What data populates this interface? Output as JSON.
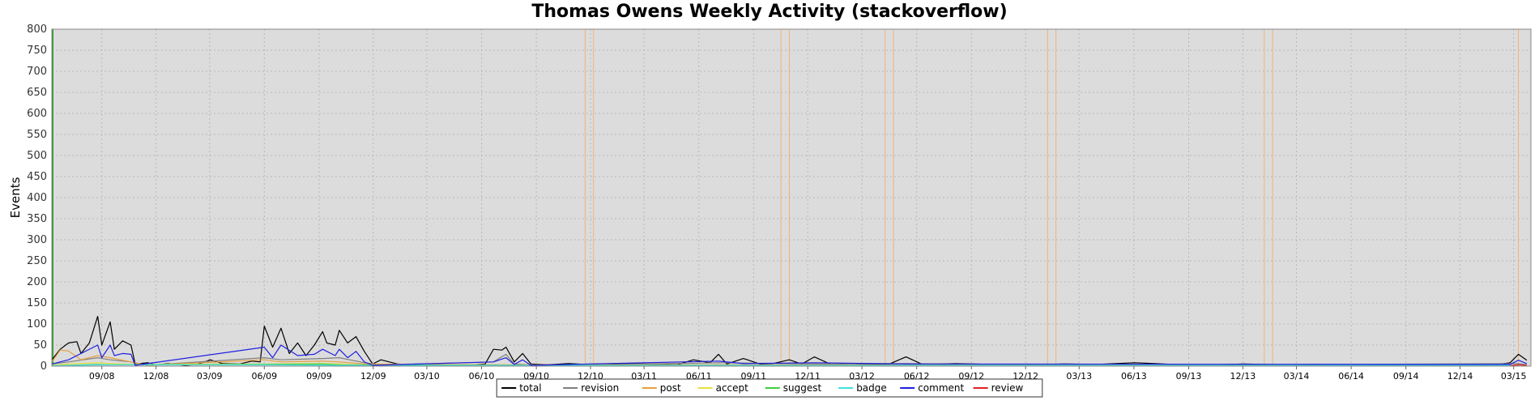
{
  "chart_data": {
    "type": "line",
    "title": "Thomas Owens Weekly Activity (stackoverflow)",
    "ylabel": "Events",
    "xlabel": "",
    "ylim": [
      0,
      800
    ],
    "yticks": [
      0,
      50,
      100,
      150,
      200,
      250,
      300,
      350,
      400,
      450,
      500,
      550,
      600,
      650,
      700,
      750,
      800
    ],
    "x_start": "2008-06-09",
    "x_end": "2015-03-30",
    "xtick_labels": [
      {
        "label": "09/08",
        "date": "2008-09-01"
      },
      {
        "label": "12/08",
        "date": "2008-12-01"
      },
      {
        "label": "03/09",
        "date": "2009-03-01"
      },
      {
        "label": "06/09",
        "date": "2009-06-01"
      },
      {
        "label": "09/09",
        "date": "2009-09-01"
      },
      {
        "label": "12/09",
        "date": "2009-12-01"
      },
      {
        "label": "03/10",
        "date": "2010-03-01"
      },
      {
        "label": "06/10",
        "date": "2010-06-01"
      },
      {
        "label": "09/10",
        "date": "2010-09-01"
      },
      {
        "label": "12/10",
        "date": "2010-12-01"
      },
      {
        "label": "03/11",
        "date": "2011-03-01"
      },
      {
        "label": "06/11",
        "date": "2011-06-01"
      },
      {
        "label": "09/11",
        "date": "2011-09-01"
      },
      {
        "label": "12/11",
        "date": "2011-12-01"
      },
      {
        "label": "03/12",
        "date": "2012-03-01"
      },
      {
        "label": "06/12",
        "date": "2012-06-01"
      },
      {
        "label": "09/12",
        "date": "2012-09-01"
      },
      {
        "label": "12/12",
        "date": "2012-12-01"
      },
      {
        "label": "03/13",
        "date": "2013-03-01"
      },
      {
        "label": "06/13",
        "date": "2013-06-01"
      },
      {
        "label": "09/13",
        "date": "2013-09-01"
      },
      {
        "label": "12/13",
        "date": "2013-12-01"
      },
      {
        "label": "03/14",
        "date": "2014-03-01"
      },
      {
        "label": "06/14",
        "date": "2014-06-01"
      },
      {
        "label": "09/14",
        "date": "2014-09-01"
      },
      {
        "label": "12/14",
        "date": "2014-12-01"
      },
      {
        "label": "03/15",
        "date": "2015-03-01"
      }
    ],
    "vertical_markers": {
      "color": "#f2b27a",
      "dates": [
        "2010-11-22",
        "2010-12-06",
        "2011-10-17",
        "2011-10-31",
        "2012-04-09",
        "2012-04-23",
        "2013-01-07",
        "2013-01-21",
        "2014-01-06",
        "2014-01-20",
        "2015-03-09"
      ]
    },
    "start_marker": {
      "date": "2008-06-09",
      "color": "#2aa02a"
    },
    "grid": true,
    "legend_position": "bottom-center",
    "series": [
      {
        "name": "total",
        "color": "#000000",
        "points": [
          [
            "2008-06-09",
            15
          ],
          [
            "2008-06-23",
            40
          ],
          [
            "2008-07-07",
            55
          ],
          [
            "2008-07-21",
            58
          ],
          [
            "2008-07-28",
            30
          ],
          [
            "2008-08-11",
            55
          ],
          [
            "2008-08-25",
            118
          ],
          [
            "2008-09-01",
            50
          ],
          [
            "2008-09-15",
            105
          ],
          [
            "2008-09-22",
            40
          ],
          [
            "2008-10-06",
            60
          ],
          [
            "2008-10-20",
            50
          ],
          [
            "2008-10-27",
            5
          ],
          [
            "2008-11-17",
            8
          ],
          [
            "2008-12-01",
            3
          ],
          [
            "2008-12-22",
            6
          ],
          [
            "2009-01-19",
            2
          ],
          [
            "2009-02-09",
            4
          ],
          [
            "2009-03-02",
            15
          ],
          [
            "2009-03-23",
            6
          ],
          [
            "2009-04-20",
            5
          ],
          [
            "2009-05-11",
            12
          ],
          [
            "2009-05-25",
            10
          ],
          [
            "2009-06-01",
            95
          ],
          [
            "2009-06-15",
            45
          ],
          [
            "2009-06-29",
            90
          ],
          [
            "2009-07-13",
            30
          ],
          [
            "2009-07-27",
            55
          ],
          [
            "2009-08-10",
            25
          ],
          [
            "2009-08-24",
            50
          ],
          [
            "2009-09-07",
            82
          ],
          [
            "2009-09-14",
            55
          ],
          [
            "2009-09-28",
            50
          ],
          [
            "2009-10-05",
            85
          ],
          [
            "2009-10-19",
            55
          ],
          [
            "2009-11-02",
            70
          ],
          [
            "2009-11-16",
            35
          ],
          [
            "2009-11-30",
            5
          ],
          [
            "2009-12-14",
            15
          ],
          [
            "2010-01-11",
            5
          ],
          [
            "2010-02-15",
            2
          ],
          [
            "2010-03-15",
            4
          ],
          [
            "2010-04-19",
            3
          ],
          [
            "2010-05-17",
            3
          ],
          [
            "2010-06-07",
            5
          ],
          [
            "2010-06-21",
            40
          ],
          [
            "2010-07-05",
            38
          ],
          [
            "2010-07-12",
            45
          ],
          [
            "2010-07-26",
            10
          ],
          [
            "2010-08-09",
            30
          ],
          [
            "2010-08-23",
            5
          ],
          [
            "2010-09-20",
            3
          ],
          [
            "2010-10-25",
            6
          ],
          [
            "2010-11-22",
            4
          ],
          [
            "2011-01-10",
            6
          ],
          [
            "2011-02-28",
            5
          ],
          [
            "2011-04-25",
            3
          ],
          [
            "2011-05-23",
            15
          ],
          [
            "2011-06-20",
            8
          ],
          [
            "2011-07-04",
            28
          ],
          [
            "2011-07-18",
            5
          ],
          [
            "2011-08-15",
            18
          ],
          [
            "2011-09-12",
            5
          ],
          [
            "2011-10-03",
            6
          ],
          [
            "2011-10-31",
            15
          ],
          [
            "2011-11-21",
            5
          ],
          [
            "2011-12-12",
            22
          ],
          [
            "2012-01-09",
            4
          ],
          [
            "2012-02-13",
            6
          ],
          [
            "2012-03-12",
            4
          ],
          [
            "2012-04-16",
            5
          ],
          [
            "2012-05-14",
            22
          ],
          [
            "2012-06-11",
            4
          ],
          [
            "2012-08-06",
            6
          ],
          [
            "2012-10-01",
            4
          ],
          [
            "2012-12-03",
            3
          ],
          [
            "2013-02-04",
            5
          ],
          [
            "2013-04-01",
            4
          ],
          [
            "2013-06-03",
            8
          ],
          [
            "2013-08-05",
            4
          ],
          [
            "2013-10-07",
            3
          ],
          [
            "2013-12-02",
            5
          ],
          [
            "2014-02-03",
            3
          ],
          [
            "2014-04-07",
            4
          ],
          [
            "2014-06-02",
            2
          ],
          [
            "2014-08-04",
            4
          ],
          [
            "2014-10-06",
            3
          ],
          [
            "2014-12-01",
            2
          ],
          [
            "2015-02-02",
            4
          ],
          [
            "2015-02-23",
            8
          ],
          [
            "2015-03-09",
            28
          ],
          [
            "2015-03-23",
            14
          ]
        ]
      },
      {
        "name": "revision",
        "color": "#7f7f7f",
        "points": [
          [
            "2008-06-09",
            5
          ],
          [
            "2008-07-07",
            10
          ],
          [
            "2008-08-25",
            20
          ],
          [
            "2008-09-15",
            15
          ],
          [
            "2008-10-20",
            10
          ],
          [
            "2008-11-17",
            2
          ],
          [
            "2009-06-01",
            20
          ],
          [
            "2009-06-29",
            15
          ],
          [
            "2009-09-07",
            18
          ],
          [
            "2009-10-05",
            20
          ],
          [
            "2009-11-16",
            8
          ],
          [
            "2009-12-14",
            3
          ],
          [
            "2010-06-21",
            10
          ],
          [
            "2010-07-12",
            28
          ],
          [
            "2010-07-26",
            5
          ],
          [
            "2010-09-20",
            1
          ],
          [
            "2011-07-04",
            8
          ],
          [
            "2011-12-12",
            5
          ],
          [
            "2012-05-14",
            6
          ],
          [
            "2013-06-03",
            2
          ],
          [
            "2015-03-09",
            6
          ],
          [
            "2015-03-23",
            3
          ]
        ]
      },
      {
        "name": "post",
        "color": "#e8a040",
        "points": [
          [
            "2008-06-09",
            10
          ],
          [
            "2008-06-23",
            38
          ],
          [
            "2008-07-07",
            36
          ],
          [
            "2008-07-28",
            15
          ],
          [
            "2008-08-25",
            25
          ],
          [
            "2008-09-15",
            20
          ],
          [
            "2008-10-20",
            10
          ],
          [
            "2008-11-17",
            2
          ],
          [
            "2009-06-01",
            15
          ],
          [
            "2009-06-29",
            10
          ],
          [
            "2009-09-07",
            12
          ],
          [
            "2009-10-05",
            10
          ],
          [
            "2009-11-16",
            5
          ],
          [
            "2010-07-12",
            3
          ],
          [
            "2011-07-04",
            3
          ],
          [
            "2015-03-09",
            2
          ]
        ]
      },
      {
        "name": "accept",
        "color": "#e8e040",
        "points": [
          [
            "2008-06-09",
            2
          ],
          [
            "2008-07-07",
            5
          ],
          [
            "2008-08-25",
            8
          ],
          [
            "2008-09-15",
            6
          ],
          [
            "2008-10-20",
            4
          ],
          [
            "2009-06-01",
            5
          ],
          [
            "2009-09-07",
            6
          ],
          [
            "2009-10-05",
            5
          ],
          [
            "2009-11-16",
            2
          ],
          [
            "2010-07-12",
            1
          ],
          [
            "2015-03-09",
            1
          ]
        ]
      },
      {
        "name": "suggest",
        "color": "#40d040",
        "points": [
          [
            "2008-06-09",
            1
          ],
          [
            "2008-08-25",
            4
          ],
          [
            "2008-09-15",
            3
          ],
          [
            "2009-06-01",
            4
          ],
          [
            "2009-09-07",
            5
          ],
          [
            "2009-10-05",
            3
          ],
          [
            "2010-07-12",
            2
          ],
          [
            "2011-07-04",
            2
          ],
          [
            "2015-03-09",
            1
          ]
        ]
      },
      {
        "name": "badge",
        "color": "#40e0e0",
        "points": [
          [
            "2008-06-09",
            1
          ],
          [
            "2008-08-25",
            3
          ],
          [
            "2009-06-01",
            3
          ],
          [
            "2009-10-05",
            2
          ],
          [
            "2010-07-12",
            2
          ],
          [
            "2011-07-04",
            2
          ],
          [
            "2012-05-14",
            2
          ],
          [
            "2015-03-09",
            2
          ]
        ]
      },
      {
        "name": "comment",
        "color": "#2020e0",
        "points": [
          [
            "2008-06-09",
            5
          ],
          [
            "2008-07-07",
            15
          ],
          [
            "2008-08-25",
            50
          ],
          [
            "2008-09-01",
            20
          ],
          [
            "2008-09-15",
            50
          ],
          [
            "2008-09-22",
            25
          ],
          [
            "2008-10-06",
            30
          ],
          [
            "2008-10-20",
            28
          ],
          [
            "2008-10-27",
            2
          ],
          [
            "2009-06-01",
            45
          ],
          [
            "2009-06-15",
            20
          ],
          [
            "2009-06-29",
            50
          ],
          [
            "2009-07-27",
            25
          ],
          [
            "2009-08-24",
            28
          ],
          [
            "2009-09-07",
            40
          ],
          [
            "2009-09-28",
            25
          ],
          [
            "2009-10-05",
            40
          ],
          [
            "2009-10-19",
            20
          ],
          [
            "2009-11-02",
            35
          ],
          [
            "2009-11-16",
            10
          ],
          [
            "2009-11-30",
            2
          ],
          [
            "2010-06-21",
            10
          ],
          [
            "2010-07-12",
            20
          ],
          [
            "2010-07-26",
            4
          ],
          [
            "2010-08-09",
            15
          ],
          [
            "2010-08-23",
            2
          ],
          [
            "2011-07-04",
            12
          ],
          [
            "2011-08-15",
            6
          ],
          [
            "2011-12-12",
            8
          ],
          [
            "2012-05-14",
            5
          ],
          [
            "2015-02-23",
            4
          ],
          [
            "2015-03-09",
            14
          ],
          [
            "2015-03-23",
            6
          ]
        ]
      },
      {
        "name": "review",
        "color": "#e02020",
        "points": [
          [
            "2015-02-23",
            1
          ],
          [
            "2015-03-09",
            3
          ],
          [
            "2015-03-23",
            2
          ]
        ]
      }
    ]
  }
}
